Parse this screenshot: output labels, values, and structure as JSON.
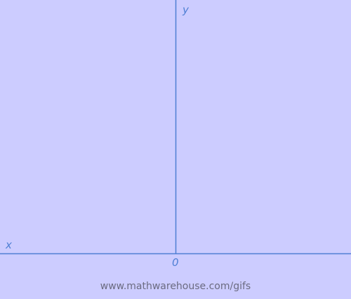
{
  "diagram": {
    "labels": {
      "y_axis": "y",
      "x_axis": "x",
      "origin": "0"
    },
    "watermark": "www.mathwarehouse.com/gifs",
    "colors": {
      "background": "#ccccff",
      "axis": "#4f7fd4",
      "watermark": "#6b6b80"
    }
  }
}
